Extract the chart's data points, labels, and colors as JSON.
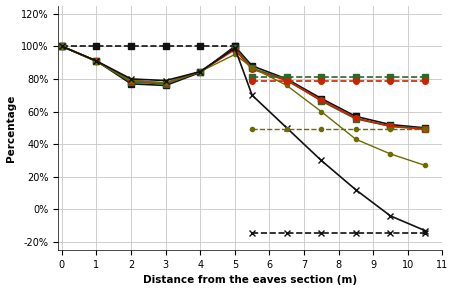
{
  "xlabel": "Distance from the eaves section (m)",
  "ylabel": "Percentage",
  "xlim": [
    -0.1,
    11
  ],
  "ylim": [
    -0.25,
    1.25
  ],
  "yticks": [
    -0.2,
    0.0,
    0.2,
    0.4,
    0.6,
    0.8,
    1.0,
    1.2
  ],
  "xticks": [
    0,
    1,
    2,
    3,
    4,
    5,
    6,
    7,
    8,
    9,
    10,
    11
  ],
  "series": [
    {
      "label": "black_dashed_sq_left",
      "color": "#111111",
      "linestyle": "--",
      "marker": "s",
      "markersize": 4,
      "linewidth": 1.2,
      "x": [
        0,
        1,
        2,
        3,
        4,
        5
      ],
      "y": [
        1.0,
        1.0,
        1.0,
        1.0,
        1.0,
        1.0
      ]
    },
    {
      "label": "black_solid_square",
      "color": "#111111",
      "linestyle": "-",
      "marker": "s",
      "markersize": 4,
      "linewidth": 1.2,
      "x": [
        0,
        1,
        2,
        3,
        4,
        5,
        5.5,
        6.5,
        7.5,
        8.5,
        9.5,
        10.5
      ],
      "y": [
        1.0,
        0.91,
        0.77,
        0.76,
        0.84,
        1.0,
        0.88,
        0.8,
        0.68,
        0.57,
        0.52,
        0.5
      ]
    },
    {
      "label": "darkgreen_solid_square",
      "color": "#2a6a2a",
      "linestyle": "-",
      "marker": "s",
      "markersize": 4,
      "linewidth": 1.2,
      "x": [
        0,
        1,
        2,
        3,
        4,
        5,
        5.5,
        6.5,
        7.5,
        8.5,
        9.5,
        10.5
      ],
      "y": [
        1.0,
        0.91,
        0.78,
        0.77,
        0.845,
        0.99,
        0.865,
        0.795,
        0.665,
        0.555,
        0.51,
        0.495
      ]
    },
    {
      "label": "red_solid_circle",
      "color": "#cc2200",
      "linestyle": "-",
      "marker": "o",
      "markersize": 4,
      "linewidth": 1.2,
      "x": [
        0,
        1,
        2,
        3,
        4,
        5,
        5.5,
        6.5,
        7.5,
        8.5,
        9.5,
        10.5
      ],
      "y": [
        1.0,
        0.91,
        0.79,
        0.775,
        0.845,
        0.98,
        0.86,
        0.79,
        0.67,
        0.56,
        0.51,
        0.49
      ]
    },
    {
      "label": "olive_solid_circle",
      "color": "#6b6b00",
      "linestyle": "-",
      "marker": "o",
      "markersize": 3,
      "linewidth": 1.0,
      "x": [
        0,
        1,
        2,
        3,
        4,
        5,
        5.5,
        6.5,
        7.5,
        8.5,
        9.5,
        10.5
      ],
      "y": [
        1.0,
        0.905,
        0.79,
        0.775,
        0.845,
        0.95,
        0.87,
        0.76,
        0.6,
        0.43,
        0.34,
        0.27
      ]
    },
    {
      "label": "black_solid_x",
      "color": "#111111",
      "linestyle": "-",
      "marker": "x",
      "markersize": 5,
      "linewidth": 1.2,
      "x": [
        0,
        1,
        2,
        3,
        4,
        5,
        5.5,
        6.5,
        7.5,
        8.5,
        9.5,
        10.5
      ],
      "y": [
        1.0,
        0.91,
        0.8,
        0.79,
        0.845,
        0.99,
        0.7,
        0.5,
        0.3,
        0.12,
        -0.04,
        -0.13
      ]
    },
    {
      "label": "green_dashed_sq_right",
      "color": "#2a6a2a",
      "linestyle": "--",
      "marker": "s",
      "markersize": 4,
      "linewidth": 1.2,
      "x": [
        5.5,
        6.5,
        7.5,
        8.5,
        9.5,
        10.5
      ],
      "y": [
        0.81,
        0.81,
        0.81,
        0.81,
        0.81,
        0.81
      ]
    },
    {
      "label": "red_dashed_circle_right",
      "color": "#cc2200",
      "linestyle": "--",
      "marker": "o",
      "markersize": 4,
      "linewidth": 1.2,
      "x": [
        5.5,
        6.5,
        7.5,
        8.5,
        9.5,
        10.5
      ],
      "y": [
        0.785,
        0.785,
        0.785,
        0.785,
        0.785,
        0.785
      ]
    },
    {
      "label": "olive_dashed_circle_right",
      "color": "#6b6b00",
      "linestyle": "--",
      "marker": "o",
      "markersize": 3,
      "linewidth": 1.0,
      "x": [
        5.5,
        6.5,
        7.5,
        8.5,
        9.5,
        10.5
      ],
      "y": [
        0.49,
        0.49,
        0.49,
        0.49,
        0.49,
        0.49
      ]
    },
    {
      "label": "black_dashed_x_right",
      "color": "#111111",
      "linestyle": "--",
      "marker": "x",
      "markersize": 5,
      "linewidth": 1.2,
      "x": [
        5.5,
        6.5,
        7.5,
        8.5,
        9.5,
        10.5
      ],
      "y": [
        -0.145,
        -0.145,
        -0.145,
        -0.145,
        -0.145,
        -0.145
      ]
    }
  ],
  "background_color": "#ffffff",
  "grid_color": "#c8c8c8"
}
